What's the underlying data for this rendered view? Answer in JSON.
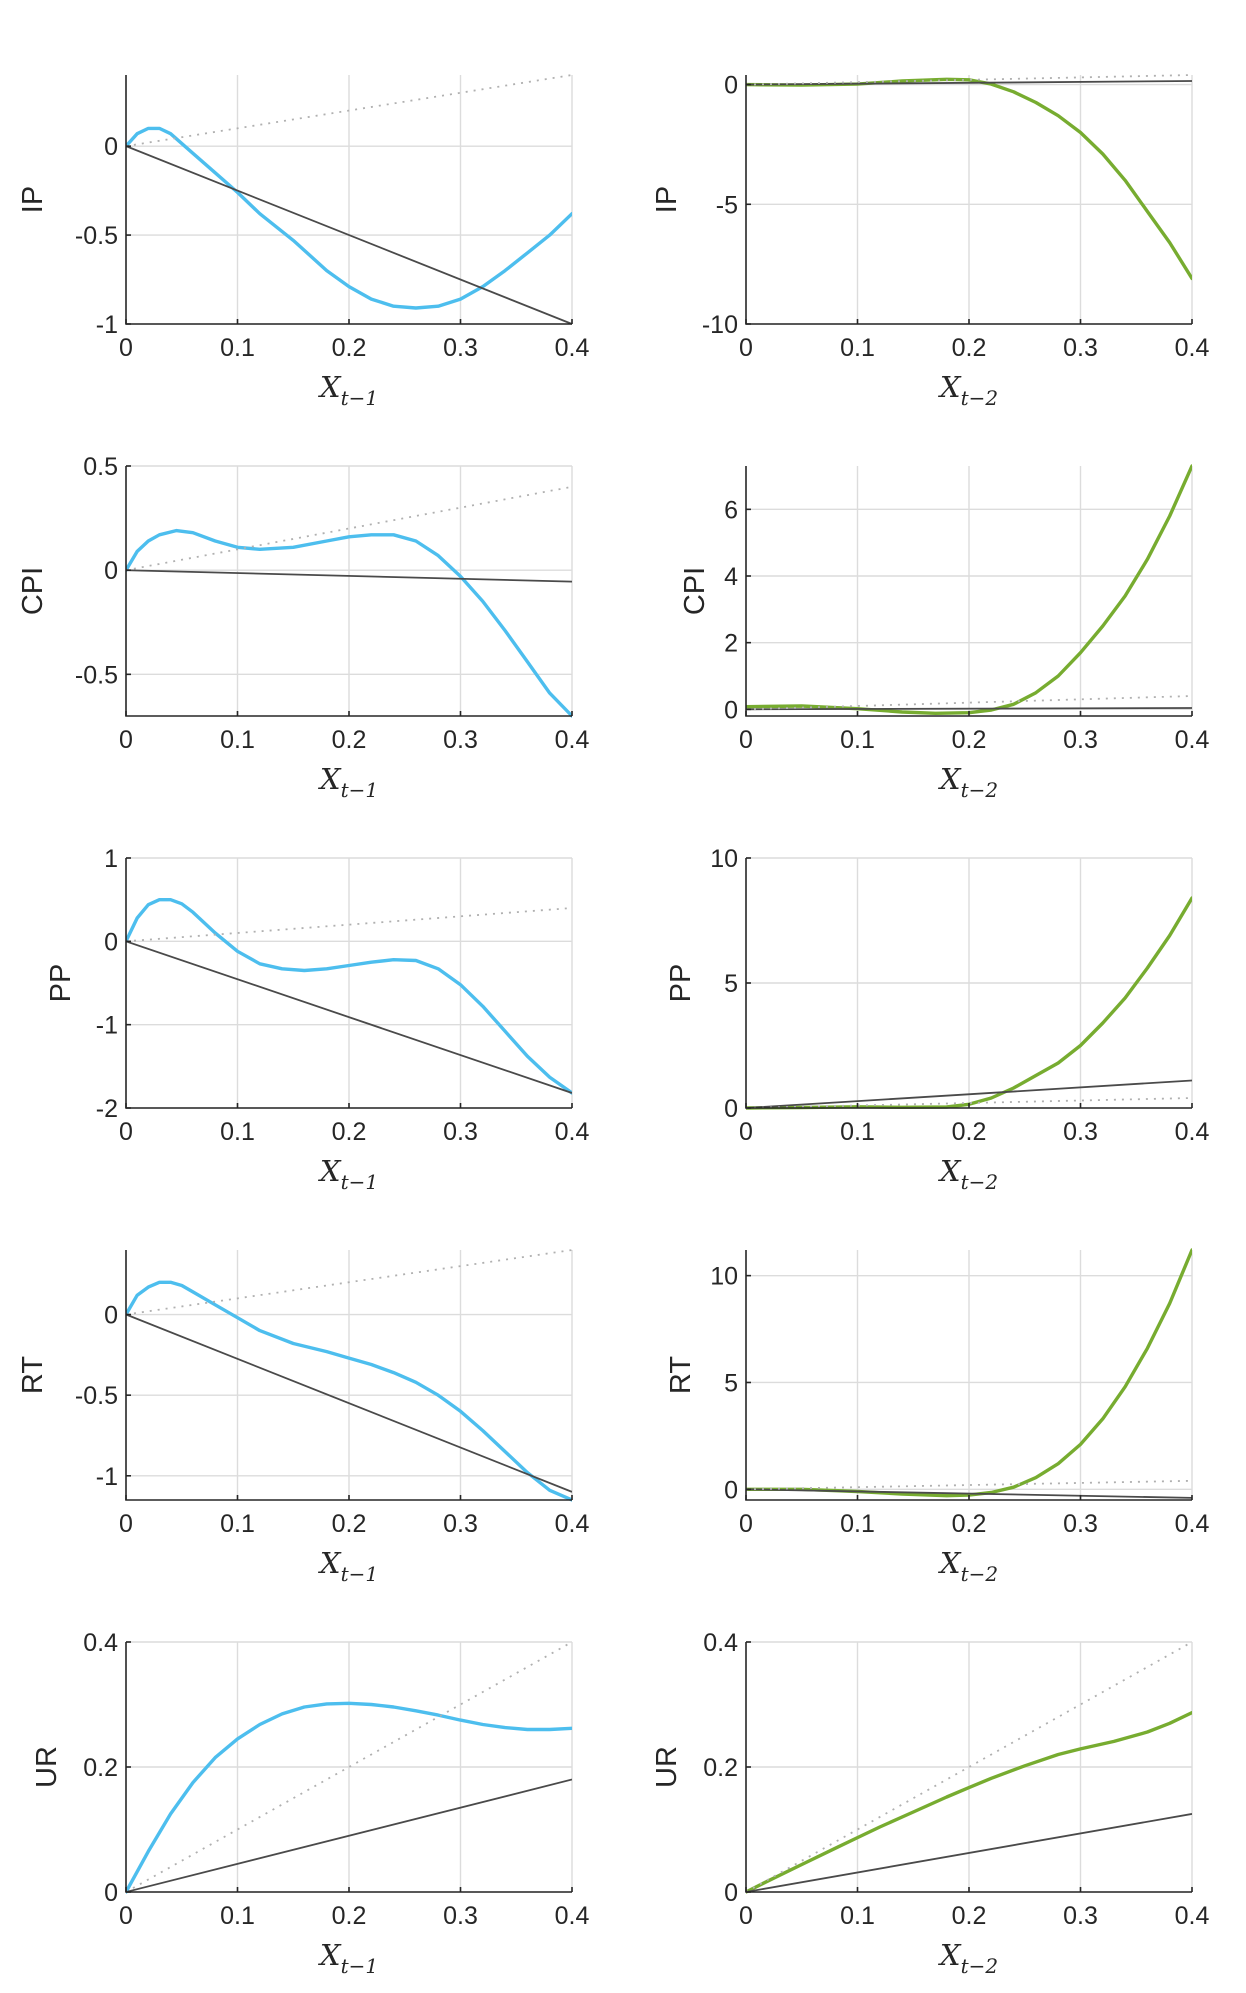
{
  "colors": {
    "left_series": "#4dbeee",
    "right_series": "#77ac30",
    "linear": "#4a4a4a",
    "identity": "#b0b0b0",
    "grid": "#dcdcdc"
  },
  "chart_data": [
    {
      "type": "line",
      "ylabel": "IP",
      "xlabel": "X",
      "xlabel_sub": "t−1",
      "xlim": [
        0,
        0.4
      ],
      "ylim": [
        -1,
        0.4
      ],
      "xticks": [
        0,
        0.1,
        0.2,
        0.3,
        0.4
      ],
      "xtick_labels": [
        "0",
        "0.1",
        "0.2",
        "0.3",
        "0.4"
      ],
      "yticks": [
        -1,
        -0.5,
        0
      ],
      "ytick_labels": [
        "-1",
        "-0.5",
        "0"
      ],
      "grid": true,
      "curve_color": "#4dbeee",
      "series": [
        {
          "style": "curve",
          "x": [
            0,
            0.01,
            0.02,
            0.03,
            0.04,
            0.06,
            0.08,
            0.1,
            0.12,
            0.15,
            0.18,
            0.2,
            0.22,
            0.24,
            0.26,
            0.28,
            0.3,
            0.32,
            0.34,
            0.36,
            0.38,
            0.4
          ],
          "y": [
            0,
            0.07,
            0.1,
            0.1,
            0.07,
            -0.04,
            -0.15,
            -0.26,
            -0.38,
            -0.53,
            -0.7,
            -0.79,
            -0.86,
            -0.9,
            -0.91,
            -0.9,
            -0.86,
            -0.79,
            -0.7,
            -0.6,
            -0.5,
            -0.38
          ]
        },
        {
          "style": "linear",
          "x": [
            0,
            0.4
          ],
          "y": [
            0,
            -1
          ]
        },
        {
          "style": "identity",
          "x": [
            0,
            0.4
          ],
          "y": [
            0,
            0.4
          ]
        }
      ]
    },
    {
      "type": "line",
      "ylabel": "IP",
      "xlabel": "X",
      "xlabel_sub": "t−2",
      "xlim": [
        0,
        0.4
      ],
      "ylim": [
        -10,
        0.4
      ],
      "xticks": [
        0,
        0.1,
        0.2,
        0.3,
        0.4
      ],
      "xtick_labels": [
        "0",
        "0.1",
        "0.2",
        "0.3",
        "0.4"
      ],
      "yticks": [
        -10,
        -5,
        0
      ],
      "ytick_labels": [
        "-10",
        "-5",
        "0"
      ],
      "grid": true,
      "curve_color": "#77ac30",
      "series": [
        {
          "style": "curve",
          "x": [
            0,
            0.05,
            0.1,
            0.14,
            0.18,
            0.2,
            0.22,
            0.24,
            0.26,
            0.28,
            0.3,
            0.32,
            0.34,
            0.36,
            0.38,
            0.4
          ],
          "y": [
            0,
            -0.02,
            0.02,
            0.15,
            0.22,
            0.2,
            0.02,
            -0.3,
            -0.75,
            -1.3,
            -2.0,
            -2.9,
            -4.0,
            -5.3,
            -6.6,
            -8.1
          ]
        },
        {
          "style": "linear",
          "x": [
            0,
            0.4
          ],
          "y": [
            0,
            0.15
          ]
        },
        {
          "style": "identity",
          "x": [
            0,
            0.4
          ],
          "y": [
            0,
            0.4
          ]
        }
      ]
    },
    {
      "type": "line",
      "ylabel": "CPI",
      "xlabel": "X",
      "xlabel_sub": "t−1",
      "xlim": [
        0,
        0.4
      ],
      "ylim": [
        -0.7,
        0.5
      ],
      "xticks": [
        0,
        0.1,
        0.2,
        0.3,
        0.4
      ],
      "xtick_labels": [
        "0",
        "0.1",
        "0.2",
        "0.3",
        "0.4"
      ],
      "yticks": [
        -0.5,
        0,
        0.5
      ],
      "ytick_labels": [
        "-0.5",
        "0",
        "0.5"
      ],
      "grid": true,
      "curve_color": "#4dbeee",
      "series": [
        {
          "style": "curve",
          "x": [
            0,
            0.01,
            0.02,
            0.03,
            0.045,
            0.06,
            0.08,
            0.1,
            0.12,
            0.15,
            0.18,
            0.2,
            0.22,
            0.24,
            0.26,
            0.28,
            0.3,
            0.32,
            0.34,
            0.36,
            0.38,
            0.4
          ],
          "y": [
            0,
            0.09,
            0.14,
            0.17,
            0.19,
            0.18,
            0.14,
            0.11,
            0.1,
            0.11,
            0.14,
            0.16,
            0.17,
            0.17,
            0.14,
            0.07,
            -0.03,
            -0.15,
            -0.29,
            -0.44,
            -0.59,
            -0.7
          ]
        },
        {
          "style": "linear",
          "x": [
            0,
            0.4
          ],
          "y": [
            0,
            -0.055
          ]
        },
        {
          "style": "identity",
          "x": [
            0,
            0.4
          ],
          "y": [
            0,
            0.4
          ]
        }
      ]
    },
    {
      "type": "line",
      "ylabel": "CPI",
      "xlabel": "X",
      "xlabel_sub": "t−2",
      "xlim": [
        0,
        0.4
      ],
      "ylim": [
        -0.2,
        7.3
      ],
      "xticks": [
        0,
        0.1,
        0.2,
        0.3,
        0.4
      ],
      "xtick_labels": [
        "0",
        "0.1",
        "0.2",
        "0.3",
        "0.4"
      ],
      "yticks": [
        0,
        2,
        4,
        6
      ],
      "ytick_labels": [
        "0",
        "2",
        "4",
        "6"
      ],
      "grid": true,
      "curve_color": "#77ac30",
      "series": [
        {
          "style": "curve",
          "x": [
            0,
            0.05,
            0.1,
            0.14,
            0.17,
            0.2,
            0.22,
            0.24,
            0.26,
            0.28,
            0.3,
            0.32,
            0.34,
            0.36,
            0.38,
            0.4
          ],
          "y": [
            0.08,
            0.1,
            0.02,
            -0.08,
            -0.12,
            -0.1,
            -0.02,
            0.15,
            0.5,
            1.0,
            1.7,
            2.5,
            3.4,
            4.5,
            5.8,
            7.3
          ]
        },
        {
          "style": "linear",
          "x": [
            0,
            0.4
          ],
          "y": [
            0,
            0.04
          ]
        },
        {
          "style": "identity",
          "x": [
            0,
            0.4
          ],
          "y": [
            0,
            0.4
          ]
        }
      ]
    },
    {
      "type": "line",
      "ylabel": "PP",
      "xlabel": "X",
      "xlabel_sub": "t−1",
      "xlim": [
        0,
        0.4
      ],
      "ylim": [
        -2,
        1
      ],
      "xticks": [
        0,
        0.1,
        0.2,
        0.3,
        0.4
      ],
      "xtick_labels": [
        "0",
        "0.1",
        "0.2",
        "0.3",
        "0.4"
      ],
      "yticks": [
        -2,
        -1,
        0,
        1
      ],
      "ytick_labels": [
        "-2",
        "-1",
        "0",
        "1"
      ],
      "grid": true,
      "curve_color": "#4dbeee",
      "series": [
        {
          "style": "curve",
          "x": [
            0,
            0.01,
            0.02,
            0.03,
            0.04,
            0.05,
            0.06,
            0.08,
            0.1,
            0.12,
            0.14,
            0.16,
            0.18,
            0.2,
            0.22,
            0.24,
            0.26,
            0.28,
            0.3,
            0.32,
            0.34,
            0.36,
            0.38,
            0.4
          ],
          "y": [
            0,
            0.28,
            0.44,
            0.5,
            0.5,
            0.45,
            0.35,
            0.1,
            -0.12,
            -0.27,
            -0.33,
            -0.35,
            -0.33,
            -0.29,
            -0.25,
            -0.22,
            -0.23,
            -0.33,
            -0.52,
            -0.78,
            -1.08,
            -1.38,
            -1.63,
            -1.82
          ]
        },
        {
          "style": "linear",
          "x": [
            0,
            0.4
          ],
          "y": [
            0,
            -1.82
          ]
        },
        {
          "style": "identity",
          "x": [
            0,
            0.4
          ],
          "y": [
            0,
            0.4
          ]
        }
      ]
    },
    {
      "type": "line",
      "ylabel": "PP",
      "xlabel": "X",
      "xlabel_sub": "t−2",
      "xlim": [
        0,
        0.4
      ],
      "ylim": [
        0,
        10
      ],
      "xticks": [
        0,
        0.1,
        0.2,
        0.3,
        0.4
      ],
      "xtick_labels": [
        "0",
        "0.1",
        "0.2",
        "0.3",
        "0.4"
      ],
      "yticks": [
        0,
        5,
        10
      ],
      "ytick_labels": [
        "0",
        "5",
        "10"
      ],
      "grid": true,
      "curve_color": "#77ac30",
      "series": [
        {
          "style": "curve",
          "x": [
            0,
            0.05,
            0.1,
            0.14,
            0.18,
            0.2,
            0.22,
            0.24,
            0.26,
            0.28,
            0.3,
            0.32,
            0.34,
            0.36,
            0.38,
            0.4
          ],
          "y": [
            0,
            0.02,
            0.05,
            0.03,
            0.04,
            0.15,
            0.4,
            0.8,
            1.3,
            1.8,
            2.5,
            3.4,
            4.4,
            5.6,
            6.9,
            8.4
          ]
        },
        {
          "style": "linear",
          "x": [
            0,
            0.4
          ],
          "y": [
            0,
            1.1
          ]
        },
        {
          "style": "identity",
          "x": [
            0,
            0.4
          ],
          "y": [
            0,
            0.4
          ]
        }
      ]
    },
    {
      "type": "line",
      "ylabel": "RT",
      "xlabel": "X",
      "xlabel_sub": "t−1",
      "xlim": [
        0,
        0.4
      ],
      "ylim": [
        -1.15,
        0.4
      ],
      "xticks": [
        0,
        0.1,
        0.2,
        0.3,
        0.4
      ],
      "xtick_labels": [
        "0",
        "0.1",
        "0.2",
        "0.3",
        "0.4"
      ],
      "yticks": [
        -1,
        -0.5,
        0
      ],
      "ytick_labels": [
        "-1",
        "-0.5",
        "0"
      ],
      "grid": true,
      "curve_color": "#4dbeee",
      "series": [
        {
          "style": "curve",
          "x": [
            0,
            0.01,
            0.02,
            0.03,
            0.04,
            0.05,
            0.06,
            0.08,
            0.1,
            0.12,
            0.15,
            0.18,
            0.2,
            0.22,
            0.24,
            0.26,
            0.28,
            0.3,
            0.32,
            0.34,
            0.36,
            0.38,
            0.4
          ],
          "y": [
            0,
            0.12,
            0.17,
            0.2,
            0.2,
            0.18,
            0.14,
            0.06,
            -0.02,
            -0.1,
            -0.18,
            -0.23,
            -0.27,
            -0.31,
            -0.36,
            -0.42,
            -0.5,
            -0.6,
            -0.72,
            -0.85,
            -0.98,
            -1.09,
            -1.15
          ]
        },
        {
          "style": "linear",
          "x": [
            0,
            0.4
          ],
          "y": [
            0,
            -1.1
          ]
        },
        {
          "style": "identity",
          "x": [
            0,
            0.4
          ],
          "y": [
            0,
            0.4
          ]
        }
      ]
    },
    {
      "type": "line",
      "ylabel": "RT",
      "xlabel": "X",
      "xlabel_sub": "t−2",
      "xlim": [
        0,
        0.4
      ],
      "ylim": [
        -0.5,
        11.2
      ],
      "xticks": [
        0,
        0.1,
        0.2,
        0.3,
        0.4
      ],
      "xtick_labels": [
        "0",
        "0.1",
        "0.2",
        "0.3",
        "0.4"
      ],
      "yticks": [
        0,
        5,
        10
      ],
      "ytick_labels": [
        "0",
        "5",
        "10"
      ],
      "grid": true,
      "curve_color": "#77ac30",
      "series": [
        {
          "style": "curve",
          "x": [
            0,
            0.05,
            0.1,
            0.14,
            0.18,
            0.2,
            0.22,
            0.24,
            0.26,
            0.28,
            0.3,
            0.32,
            0.34,
            0.36,
            0.38,
            0.4
          ],
          "y": [
            0,
            0,
            -0.1,
            -0.22,
            -0.3,
            -0.27,
            -0.15,
            0.1,
            0.55,
            1.2,
            2.1,
            3.3,
            4.8,
            6.6,
            8.7,
            11.2
          ]
        },
        {
          "style": "linear",
          "x": [
            0,
            0.4
          ],
          "y": [
            0,
            -0.4
          ]
        },
        {
          "style": "identity",
          "x": [
            0,
            0.4
          ],
          "y": [
            0,
            0.4
          ]
        }
      ]
    },
    {
      "type": "line",
      "ylabel": "UR",
      "xlabel": "X",
      "xlabel_sub": "t−1",
      "xlim": [
        0,
        0.4
      ],
      "ylim": [
        0,
        0.4
      ],
      "xticks": [
        0,
        0.1,
        0.2,
        0.3,
        0.4
      ],
      "xtick_labels": [
        "0",
        "0.1",
        "0.2",
        "0.3",
        "0.4"
      ],
      "yticks": [
        0,
        0.2,
        0.4
      ],
      "ytick_labels": [
        "0",
        "0.2",
        "0.4"
      ],
      "grid": true,
      "curve_color": "#4dbeee",
      "series": [
        {
          "style": "curve",
          "x": [
            0,
            0.02,
            0.04,
            0.06,
            0.08,
            0.1,
            0.12,
            0.14,
            0.16,
            0.18,
            0.2,
            0.22,
            0.24,
            0.26,
            0.28,
            0.3,
            0.32,
            0.34,
            0.36,
            0.38,
            0.4
          ],
          "y": [
            0,
            0.065,
            0.125,
            0.175,
            0.215,
            0.245,
            0.268,
            0.285,
            0.296,
            0.301,
            0.302,
            0.3,
            0.296,
            0.29,
            0.283,
            0.275,
            0.268,
            0.263,
            0.26,
            0.26,
            0.262
          ]
        },
        {
          "style": "linear",
          "x": [
            0,
            0.4
          ],
          "y": [
            0,
            0.18
          ]
        },
        {
          "style": "identity",
          "x": [
            0,
            0.4
          ],
          "y": [
            0,
            0.4
          ]
        }
      ]
    },
    {
      "type": "line",
      "ylabel": "UR",
      "xlabel": "X",
      "xlabel_sub": "t−2",
      "xlim": [
        0,
        0.4
      ],
      "ylim": [
        0,
        0.4
      ],
      "xticks": [
        0,
        0.1,
        0.2,
        0.3,
        0.4
      ],
      "xtick_labels": [
        "0",
        "0.1",
        "0.2",
        "0.3",
        "0.4"
      ],
      "yticks": [
        0,
        0.2,
        0.4
      ],
      "ytick_labels": [
        "0",
        "0.2",
        "0.4"
      ],
      "grid": true,
      "curve_color": "#77ac30",
      "series": [
        {
          "style": "curve",
          "x": [
            0,
            0.02,
            0.05,
            0.08,
            0.1,
            0.12,
            0.15,
            0.18,
            0.2,
            0.22,
            0.25,
            0.28,
            0.3,
            0.33,
            0.36,
            0.38,
            0.4
          ],
          "y": [
            0,
            0.018,
            0.044,
            0.07,
            0.087,
            0.104,
            0.128,
            0.152,
            0.167,
            0.182,
            0.202,
            0.22,
            0.229,
            0.241,
            0.256,
            0.27,
            0.287
          ]
        },
        {
          "style": "linear",
          "x": [
            0,
            0.4
          ],
          "y": [
            0,
            0.125
          ]
        },
        {
          "style": "identity",
          "x": [
            0,
            0.4
          ],
          "y": [
            0,
            0.4
          ]
        }
      ]
    }
  ]
}
